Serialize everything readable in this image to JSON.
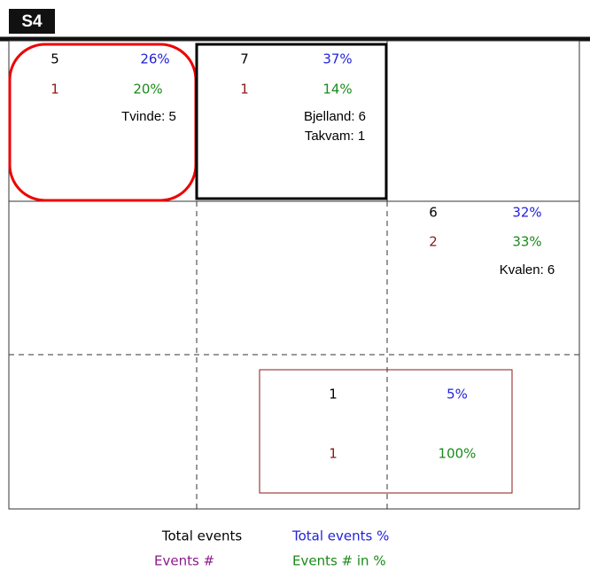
{
  "header": {
    "title": "S4"
  },
  "cells": [
    {
      "total": "5",
      "total_percent": "26%",
      "events": "1",
      "events_percent": "20%",
      "notes": [
        "Tvinde: 5"
      ]
    },
    {
      "total": "7",
      "total_percent": "37%",
      "events": "1",
      "events_percent": "14%",
      "notes": [
        "Bjelland: 6",
        "Takvam: 1"
      ]
    },
    {
      "total": "6",
      "total_percent": "32%",
      "events": "2",
      "events_percent": "33%",
      "notes": [
        "Kvalen: 6"
      ]
    },
    {
      "total": "1",
      "total_percent": "5%",
      "events": "1",
      "events_percent": "100%",
      "notes": []
    }
  ],
  "legend": {
    "total_events": "Total events",
    "total_events_percent": "Total events %",
    "events": "Events #",
    "events_percent": "Events # in %"
  }
}
